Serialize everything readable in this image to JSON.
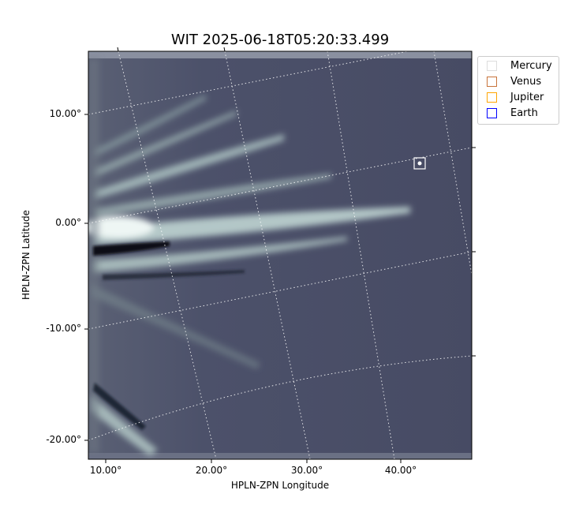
{
  "chart_data": {
    "type": "image",
    "title": "WIT 2025-06-18T05:20:33.499",
    "xlabel": "HPLN-ZPN Longitude",
    "ylabel": "HPLN-ZPN Latitude",
    "x_ticks": [
      "10.00°",
      "20.00°",
      "30.00°",
      "40.00°"
    ],
    "y_ticks": [
      "10.00°",
      "0.00°",
      "-10.00°",
      "-20.00°"
    ],
    "colormap": "bone",
    "grid": true,
    "legend_placement": "outside-top-right",
    "legend": [
      {
        "name": "Mercury",
        "color": "#dddddd"
      },
      {
        "name": "Venus",
        "color": "#c8733a"
      },
      {
        "name": "Jupiter",
        "color": "#ffa500"
      },
      {
        "name": "Earth",
        "color": "#0000ff"
      }
    ]
  }
}
